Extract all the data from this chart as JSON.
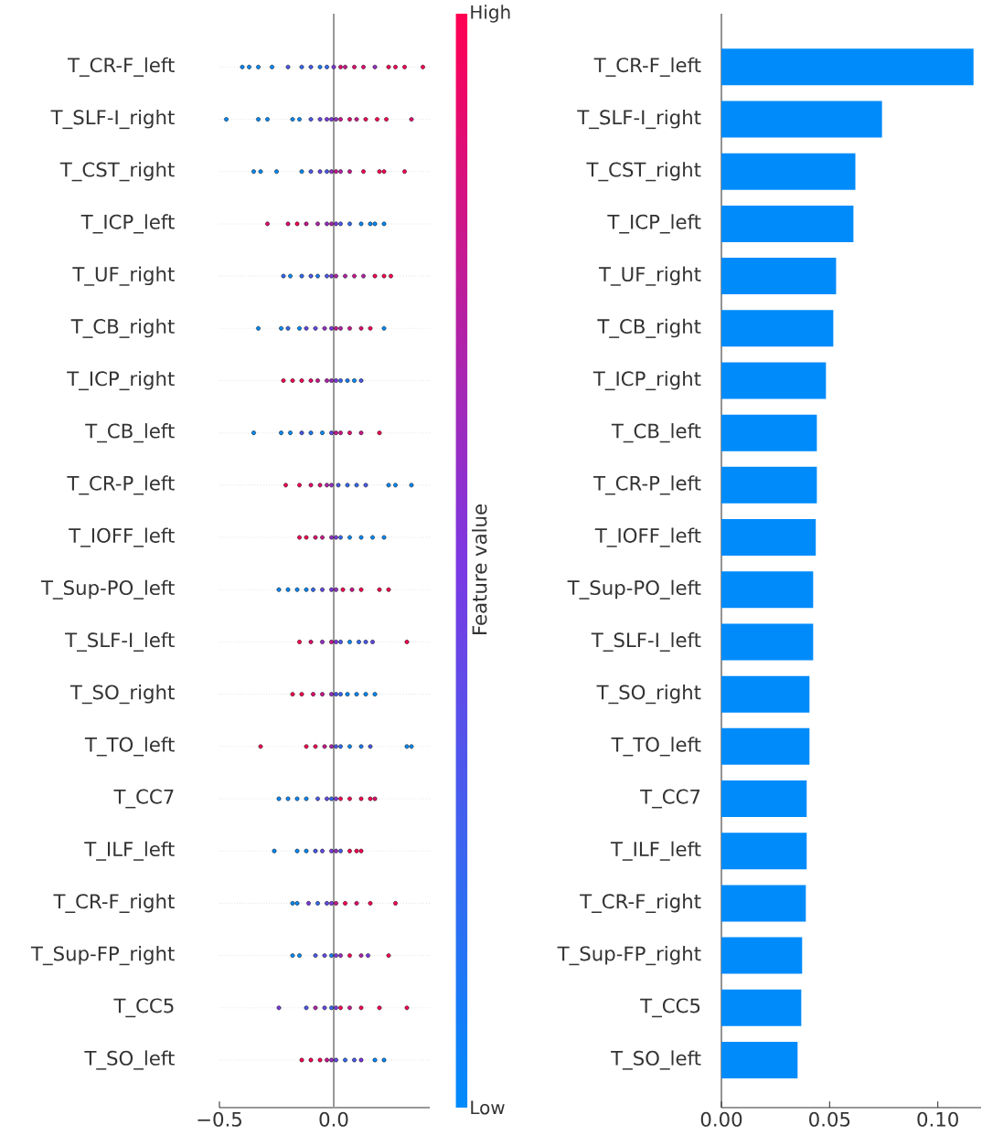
{
  "chart_data": [
    {
      "type": "scatter",
      "orientation": "horizontal",
      "marker": "circle",
      "grid": "y",
      "clabel": "Feature value",
      "categories": [
        "T_CR-F_left",
        "T_SLF-I_right",
        "T_CST_right",
        "T_ICP_left",
        "T_UF_right",
        "T_CB_right",
        "T_ICP_right",
        "T_CB_left",
        "T_CR-P_left",
        "T_IOFF_left",
        "T_Sup-PO_left",
        "T_SLF-I_left",
        "T_SO_right",
        "T_TO_left",
        "T_CC7",
        "T_ILF_left",
        "T_CR-F_right",
        "T_Sup-FP_right",
        "T_CC5",
        "T_SO_left"
      ],
      "xlim": [
        -0.5,
        0.42
      ],
      "xticks": [
        {
          "value": -0.5,
          "label": "−0.5"
        },
        {
          "value": 0,
          "label": "0.0"
        }
      ],
      "clim": [
        0,
        1
      ],
      "cticks": [
        {
          "value": 0,
          "label": "Low"
        },
        {
          "value": 1,
          "label": "High"
        }
      ],
      "ref_lines": [
        {
          "axis": "x",
          "value": 0,
          "color": "#999999"
        }
      ],
      "series": [
        {
          "colors": [
            "#008bfb",
            "#008bfb",
            "#008bfb",
            "#e50b6f",
            "#326af1",
            "#008bfb",
            "#ff0052",
            "#008bfb",
            "#ff0052",
            "#ff0052",
            "#008bfb",
            "#ff0052",
            "#ff0052",
            "#ff0052",
            "#008bfb",
            "#008bfb",
            "#008bfb",
            "#008bfb",
            "#7c38e2",
            "#ff0052"
          ],
          "values": [
            -0.4,
            -0.47,
            -0.35,
            -0.29,
            -0.22,
            -0.33,
            -0.22,
            -0.35,
            -0.21,
            -0.15,
            -0.24,
            -0.15,
            -0.18,
            -0.32,
            -0.24,
            -0.26,
            -0.18,
            -0.18,
            -0.24,
            -0.14
          ]
        },
        {
          "colors": [
            "#008bfb",
            "#008bfb",
            "#008bfb",
            "#e50b6f",
            "#008bfb",
            "#008bfb",
            "#ff0052",
            "#008bfb",
            "#ff0052",
            "#ff0052",
            "#008bfb",
            "#e50b6f",
            "#ff0052",
            "#ff0052",
            "#008bfb",
            "#008bfb",
            "#008bfb",
            "#008bfb",
            "#4a59ec",
            "#ff0052"
          ],
          "values": [
            -0.37,
            -0.33,
            -0.32,
            -0.2,
            -0.19,
            -0.23,
            -0.18,
            -0.23,
            -0.15,
            -0.12,
            -0.2,
            -0.1,
            -0.14,
            -0.12,
            -0.2,
            -0.16,
            -0.16,
            -0.15,
            -0.12,
            -0.1
          ]
        },
        {
          "colors": [
            "#008bfb",
            "#008bfb",
            "#008bfb",
            "#ff0052",
            "#326af1",
            "#326af1",
            "#ff0052",
            "#008bfb",
            "#e50b6f",
            "#e50b6f",
            "#008bfb",
            "#962dc5",
            "#e50b6f",
            "#ff0052",
            "#008bfb",
            "#008bfb",
            "#7c38e2",
            "#4a59ec",
            "#b122a8",
            "#ff0052"
          ],
          "values": [
            -0.33,
            -0.29,
            -0.25,
            -0.16,
            -0.14,
            -0.2,
            -0.14,
            -0.19,
            -0.1,
            -0.08,
            -0.16,
            -0.05,
            -0.09,
            -0.08,
            -0.16,
            -0.12,
            -0.11,
            -0.08,
            -0.08,
            -0.06
          ]
        },
        {
          "colors": [
            "#008bfb",
            "#008bfb",
            "#008bfb",
            "#cb168c",
            "#4a59ec",
            "#008bfb",
            "#e50b6f",
            "#4a59ec",
            "#e50b6f",
            "#cb168c",
            "#008bfb",
            "#cb168c",
            "#cb168c",
            "#cb168c",
            "#008bfb",
            "#4a59ec",
            "#326af1",
            "#6349e7",
            "#6349e7",
            "#cb168c"
          ],
          "values": [
            -0.27,
            -0.18,
            -0.14,
            -0.12,
            -0.1,
            -0.15,
            -0.1,
            -0.14,
            -0.06,
            -0.05,
            -0.12,
            -0.01,
            -0.05,
            -0.04,
            -0.12,
            -0.08,
            -0.07,
            -0.04,
            -0.04,
            -0.03
          ]
        },
        {
          "colors": [
            "#4a59ec",
            "#008bfb",
            "#4a59ec",
            "#b122a8",
            "#197af6",
            "#6349e7",
            "#cb168c",
            "#197af6",
            "#b122a8",
            "#962dc5",
            "#326af1",
            "#7c38e2",
            "#962dc5",
            "#b122a8",
            "#4a59ec",
            "#6349e7",
            "#6349e7",
            "#197af6",
            "#326af1",
            "#962dc5"
          ],
          "values": [
            -0.2,
            -0.15,
            -0.1,
            -0.07,
            -0.07,
            -0.12,
            -0.07,
            -0.1,
            -0.03,
            -0.01,
            -0.09,
            0.01,
            -0.01,
            -0.01,
            -0.07,
            -0.05,
            -0.03,
            -0.01,
            -0.01,
            -0.01
          ]
        },
        {
          "colors": [
            "#326af1",
            "#4a59ec",
            "#6349e7",
            "#962dc5",
            "#4a59ec",
            "#6349e7",
            "#b122a8",
            "#008bfb",
            "#962dc5",
            "#7c38e2",
            "#6349e7",
            "#4a59ec",
            "#4a59ec",
            "#4a59ec",
            "#6349e7",
            "#7c38e2",
            "#7c38e2",
            "#7c38e2",
            "#7c38e2",
            "#6349e7"
          ],
          "values": [
            -0.14,
            -0.1,
            -0.06,
            -0.03,
            -0.03,
            -0.08,
            -0.03,
            -0.05,
            -0.01,
            0.01,
            -0.05,
            0.03,
            0.01,
            0.01,
            -0.03,
            -0.01,
            -0.01,
            0.01,
            0.01,
            0.01
          ]
        },
        {
          "colors": [
            "#4a59ec",
            "#6349e7",
            "#4a59ec",
            "#b122a8",
            "#7c38e2",
            "#962dc5",
            "#962dc5",
            "#6349e7",
            "#4a59ec",
            "#326af1",
            "#7c38e2",
            "#008bfb",
            "#326af1",
            "#326af1",
            "#326af1",
            "#962dc5",
            "#cb168c",
            "#962dc5",
            "#ff0052",
            "#326af1"
          ],
          "values": [
            -0.1,
            -0.06,
            -0.03,
            -0.01,
            -0.01,
            -0.04,
            -0.01,
            -0.01,
            0.02,
            0.03,
            -0.01,
            0.07,
            0.03,
            0.03,
            -0.01,
            0.01,
            0.01,
            0.03,
            0.03,
            0.05
          ]
        },
        {
          "colors": [
            "#197af6",
            "#7c38e2",
            "#962dc5",
            "#7c38e2",
            "#b122a8",
            "#7c38e2",
            "#7c38e2",
            "#cb168c",
            "#326af1",
            "#008bfb",
            "#962dc5",
            "#326af1",
            "#008bfb",
            "#008bfb",
            "#7c38e2",
            "#4a59ec",
            "#ff0052",
            "#ff0052",
            "#cb168c",
            "#4a59ec"
          ],
          "values": [
            -0.06,
            -0.03,
            -0.01,
            0.01,
            0.01,
            -0.01,
            0.01,
            0.01,
            0.06,
            0.07,
            0.01,
            0.11,
            0.06,
            0.07,
            0.01,
            0.03,
            0.05,
            0.07,
            0.07,
            0.09
          ]
        },
        {
          "colors": [
            "#326af1",
            "#7c38e2",
            "#cb168c",
            "#4a59ec",
            "#b122a8",
            "#cb168c",
            "#326af1",
            "#cb168c",
            "#326af1",
            "#008bfb",
            "#ff0052",
            "#4a59ec",
            "#008bfb",
            "#197af6",
            "#ff0052",
            "#ff0052",
            "#e50b6f",
            "#b122a8",
            "#ff0052",
            "#7c38e2"
          ],
          "values": [
            -0.03,
            -0.01,
            0.01,
            0.03,
            0.05,
            0.01,
            0.03,
            0.03,
            0.1,
            0.12,
            0.04,
            0.14,
            0.1,
            0.12,
            0.03,
            0.07,
            0.1,
            0.12,
            0.12,
            0.12
          ]
        },
        {
          "colors": [
            "#7c38e2",
            "#962dc5",
            "#b122a8",
            "#326af1",
            "#cb168c",
            "#b122a8",
            "#197af6",
            "#e50b6f",
            "#4a59ec",
            "#008bfb",
            "#cb168c",
            "#6349e7",
            "#008bfb",
            "#4a59ec",
            "#ff0052",
            "#ff0052",
            "#ff0052",
            "#7c38e2",
            "#ff0052",
            "#008bfb"
          ],
          "values": [
            0,
            0.01,
            0.03,
            0.07,
            0.09,
            0.03,
            0.06,
            0.07,
            0.14,
            0.17,
            0.08,
            0.17,
            0.14,
            0.16,
            0.07,
            0.1,
            0.16,
            0.15,
            0.2,
            0.18
          ]
        },
        {
          "colors": [
            "#e50b6f",
            "#cb168c",
            "#cb168c",
            "#008bfb",
            "#b122a8",
            "#cb168c",
            "#008bfb",
            "#cb168c",
            "#008bfb",
            "#008bfb",
            "#ff0052",
            "#ff0052",
            "#008bfb",
            "#008bfb",
            "#ff0052",
            "#ff0052",
            "#ff0052",
            "#ff0052",
            "#ff0052",
            "#008bfb"
          ],
          "values": [
            0.03,
            0.03,
            0.07,
            0.12,
            0.13,
            0.07,
            0.09,
            0.12,
            0.24,
            0.22,
            0.12,
            0.32,
            0.18,
            0.32,
            0.12,
            0.12,
            0.27,
            0.24,
            0.32,
            0.22
          ]
        },
        {
          "colors": [
            "#cb168c",
            "#e50b6f",
            "#ff0052",
            "#008bfb",
            "#ff0052",
            "#e50b6f",
            "#4a59ec",
            "#ff0052",
            "#008bfb",
            null,
            "#ff0052",
            null,
            null,
            "#008bfb",
            "#ff0052",
            null,
            null,
            null,
            null,
            null
          ],
          "values": [
            0.05,
            0.07,
            0.13,
            0.16,
            0.18,
            0.12,
            0.12,
            0.2,
            0.27,
            null,
            0.2,
            null,
            null,
            0.34,
            0.16,
            null,
            null,
            null,
            null,
            null
          ]
        },
        {
          "colors": [
            "#e50b6f",
            "#cb168c",
            "#ff0052",
            "#008bfb",
            "#ff0052",
            "#ff0052",
            null,
            null,
            "#008bfb",
            null,
            "#ff0052",
            null,
            null,
            null,
            "#e50b6f",
            null,
            null,
            null,
            null,
            null
          ],
          "values": [
            0.09,
            0.1,
            0.2,
            0.18,
            0.22,
            0.16,
            null,
            null,
            0.34,
            null,
            0.24,
            null,
            null,
            null,
            0.18,
            null,
            null,
            null,
            null,
            null
          ]
        },
        {
          "colors": [
            "#e50b6f",
            "#ff0052",
            "#ff0052",
            "#008bfb",
            "#ff0052",
            "#008bfb",
            null,
            null,
            null,
            null,
            null,
            null,
            null,
            null,
            null,
            null,
            null,
            null,
            null,
            null
          ],
          "values": [
            0.13,
            0.14,
            0.22,
            0.22,
            0.25,
            0.22,
            null,
            null,
            null,
            null,
            null,
            null,
            null,
            null,
            null,
            null,
            null,
            null,
            null,
            null
          ]
        },
        {
          "colors": [
            "#962dc5",
            "#ff0052",
            "#ff0052",
            null,
            null,
            null,
            null,
            null,
            null,
            null,
            null,
            null,
            null,
            null,
            null,
            null,
            null,
            null,
            null,
            null
          ],
          "values": [
            0.18,
            0.19,
            0.31,
            null,
            null,
            null,
            null,
            null,
            null,
            null,
            null,
            null,
            null,
            null,
            null,
            null,
            null,
            null,
            null,
            null
          ]
        },
        {
          "colors": [
            "#ff0052",
            "#ff0052",
            null,
            null,
            null,
            null,
            null,
            null,
            null,
            null,
            null,
            null,
            null,
            null,
            null,
            null,
            null,
            null,
            null,
            null
          ],
          "values": [
            0.24,
            0.23,
            null,
            null,
            null,
            null,
            null,
            null,
            null,
            null,
            null,
            null,
            null,
            null,
            null,
            null,
            null,
            null,
            null,
            null
          ]
        },
        {
          "colors": [
            "#ff0052",
            "#e50b6f",
            null,
            null,
            null,
            null,
            null,
            null,
            null,
            null,
            null,
            null,
            null,
            null,
            null,
            null,
            null,
            null,
            null,
            null
          ],
          "values": [
            0.27,
            0.34,
            null,
            null,
            null,
            null,
            null,
            null,
            null,
            null,
            null,
            null,
            null,
            null,
            null,
            null,
            null,
            null,
            null,
            null
          ]
        },
        {
          "colors": [
            "#ff0052",
            null,
            null,
            null,
            null,
            null,
            null,
            null,
            null,
            null,
            null,
            null,
            null,
            null,
            null,
            null,
            null,
            null,
            null,
            null
          ],
          "values": [
            0.31,
            null,
            null,
            null,
            null,
            null,
            null,
            null,
            null,
            null,
            null,
            null,
            null,
            null,
            null,
            null,
            null,
            null,
            null,
            null
          ]
        },
        {
          "colors": [
            "#ff0052",
            null,
            null,
            null,
            null,
            null,
            null,
            null,
            null,
            null,
            null,
            null,
            null,
            null,
            null,
            null,
            null,
            null,
            null,
            null
          ],
          "values": [
            0.39,
            null,
            null,
            null,
            null,
            null,
            null,
            null,
            null,
            null,
            null,
            null,
            null,
            null,
            null,
            null,
            null,
            null,
            null,
            null
          ]
        }
      ]
    },
    {
      "type": "bar",
      "orientation": "horizontal",
      "color": "#008bfb",
      "categories": [
        "T_CR-F_left",
        "T_SLF-I_right",
        "T_CST_right",
        "T_ICP_left",
        "T_UF_right",
        "T_CB_right",
        "T_ICP_right",
        "T_CB_left",
        "T_CR-P_left",
        "T_IOFF_left",
        "T_Sup-PO_left",
        "T_SLF-I_left",
        "T_SO_right",
        "T_TO_left",
        "T_CC7",
        "T_ILF_left",
        "T_CR-F_right",
        "T_Sup-FP_right",
        "T_CC5",
        "T_SO_left"
      ],
      "values": [
        0.1165,
        0.0742,
        0.0619,
        0.061,
        0.053,
        0.0517,
        0.0483,
        0.0441,
        0.0441,
        0.0436,
        0.0424,
        0.0424,
        0.0407,
        0.0407,
        0.0394,
        0.0394,
        0.039,
        0.0373,
        0.0369,
        0.0352
      ],
      "xlim": [
        0,
        0.12
      ],
      "xticks": [
        {
          "value": 0,
          "label": "0.00"
        },
        {
          "value": 0.05,
          "label": "0.05"
        },
        {
          "value": 0.1,
          "label": "0.10"
        }
      ]
    }
  ]
}
